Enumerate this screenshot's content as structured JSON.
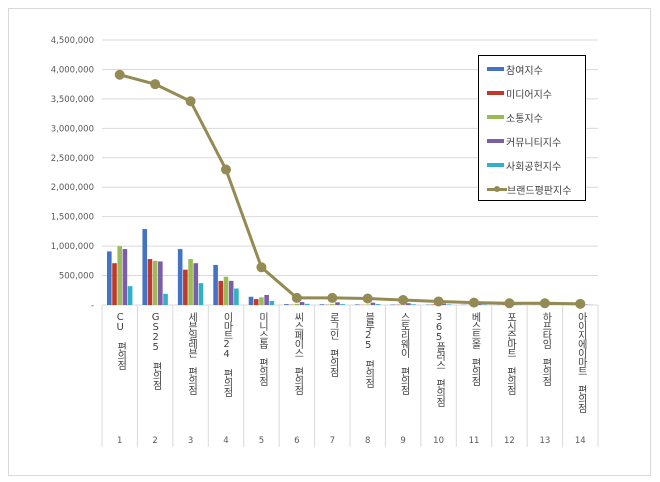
{
  "chart_data": {
    "type": "bar",
    "title": "",
    "xlabel": "",
    "ylabel": "",
    "ylim": [
      0,
      4500000
    ],
    "yticks": [
      "-",
      "500,000",
      "1,000,000",
      "1,500,000",
      "2,000,000",
      "2,500,000",
      "3,000,000",
      "3,500,000",
      "4,000,000",
      "4,500,000"
    ],
    "grid": true,
    "legend_position": "upper-right",
    "categories": [
      "CU 편의점",
      "GS25 편의점",
      "세븐일레븐 편의점",
      "이마트24 편의점",
      "미니스톱 편의점",
      "씨스페이스 편의점",
      "로그인 편의점",
      "블루25 편의점",
      "스토리웨이 편의점",
      "365플러스 편의점",
      "베스트올 편의점",
      "포시즌마트 편의점",
      "하프타임 편의점",
      "아이지에이마트 편의점"
    ],
    "ranks": [
      "1",
      "2",
      "3",
      "4",
      "5",
      "6",
      "7",
      "8",
      "9",
      "10",
      "11",
      "12",
      "13",
      "14"
    ],
    "series": [
      {
        "name": "참여지수",
        "type": "bar",
        "color": "#4472C4",
        "values": [
          910000,
          1290000,
          950000,
          680000,
          140000,
          15000,
          12000,
          10000,
          8000,
          6000,
          4000,
          3000,
          2500,
          2000
        ]
      },
      {
        "name": "미디어지수",
        "type": "bar",
        "color": "#C0392B",
        "values": [
          710000,
          780000,
          600000,
          410000,
          100000,
          5000,
          4000,
          3000,
          5000,
          8000,
          3000,
          6000,
          2000,
          1000
        ]
      },
      {
        "name": "소통지수",
        "type": "bar",
        "color": "#9BBB59",
        "values": [
          1000000,
          750000,
          780000,
          480000,
          130000,
          20000,
          15000,
          10000,
          8000,
          5000,
          4000,
          3000,
          3000,
          2000
        ]
      },
      {
        "name": "커뮤니티지수",
        "type": "bar",
        "color": "#7B5EA7",
        "values": [
          950000,
          740000,
          710000,
          410000,
          170000,
          50000,
          45000,
          40000,
          30000,
          25000,
          20000,
          15000,
          10000,
          8000
        ]
      },
      {
        "name": "사회공헌지수",
        "type": "bar",
        "color": "#31B0C8",
        "values": [
          320000,
          190000,
          370000,
          280000,
          70000,
          20000,
          15000,
          15000,
          12000,
          10000,
          8000,
          6000,
          5000,
          3000
        ]
      },
      {
        "name": "브랜드평판지수",
        "type": "line",
        "color": "#948A54",
        "values": [
          3910000,
          3750000,
          3460000,
          2300000,
          640000,
          120000,
          120000,
          110000,
          85000,
          60000,
          40000,
          30000,
          30000,
          20000
        ]
      }
    ]
  }
}
